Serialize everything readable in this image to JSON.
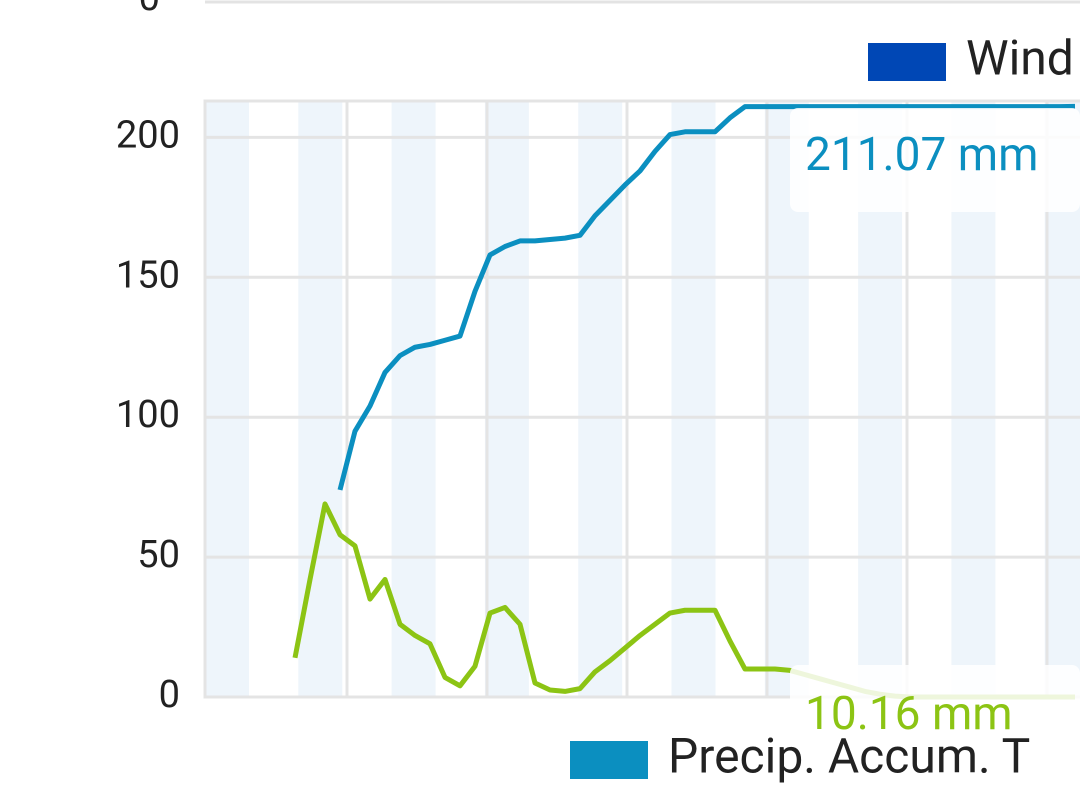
{
  "header_tick": "0",
  "chart_data": {
    "type": "line",
    "legend": [
      {
        "name": "Wind",
        "color": "#0047b5"
      },
      {
        "name": "Precip. Accum. T",
        "color": "#0b8fc0"
      }
    ],
    "series": [
      {
        "name": "Precip. Accum. T",
        "color": "#0b8fc0",
        "values": [
          null,
          null,
          null,
          null,
          null,
          null,
          null,
          null,
          null,
          74,
          95,
          104,
          116,
          122,
          125,
          126,
          127.5,
          129,
          145,
          158,
          161,
          163,
          163,
          163.5,
          164,
          165,
          172,
          177.5,
          183,
          188,
          195,
          201,
          202,
          202,
          202,
          207,
          211,
          211,
          211,
          211,
          211,
          211,
          211,
          211,
          211,
          211,
          211,
          211,
          211,
          211,
          211,
          211,
          211,
          211,
          211,
          211,
          211,
          211,
          211.07
        ]
      },
      {
        "color": "#8cc414",
        "values": [
          null,
          null,
          null,
          null,
          null,
          null,
          14,
          42,
          69,
          58,
          54,
          35,
          42,
          26,
          22,
          19,
          7,
          4,
          11,
          30,
          32,
          26,
          5,
          2.5,
          2,
          3,
          9,
          13,
          17.5,
          22,
          26,
          30,
          31,
          31,
          31,
          20,
          10,
          10,
          10,
          9.5,
          8,
          6.5,
          5,
          3.5,
          2,
          1,
          0.3,
          0,
          0,
          0,
          0,
          0,
          0,
          0,
          0,
          0,
          0,
          0,
          0
        ]
      }
    ],
    "annotations": [
      {
        "text": "211.07 mm",
        "color": "#0b8fc0"
      },
      {
        "text": "10.16 mm",
        "color": "#8cc414"
      }
    ],
    "ylim": [
      0,
      213
    ],
    "yticks": [
      0,
      50,
      100,
      150,
      200
    ],
    "grid": true
  }
}
